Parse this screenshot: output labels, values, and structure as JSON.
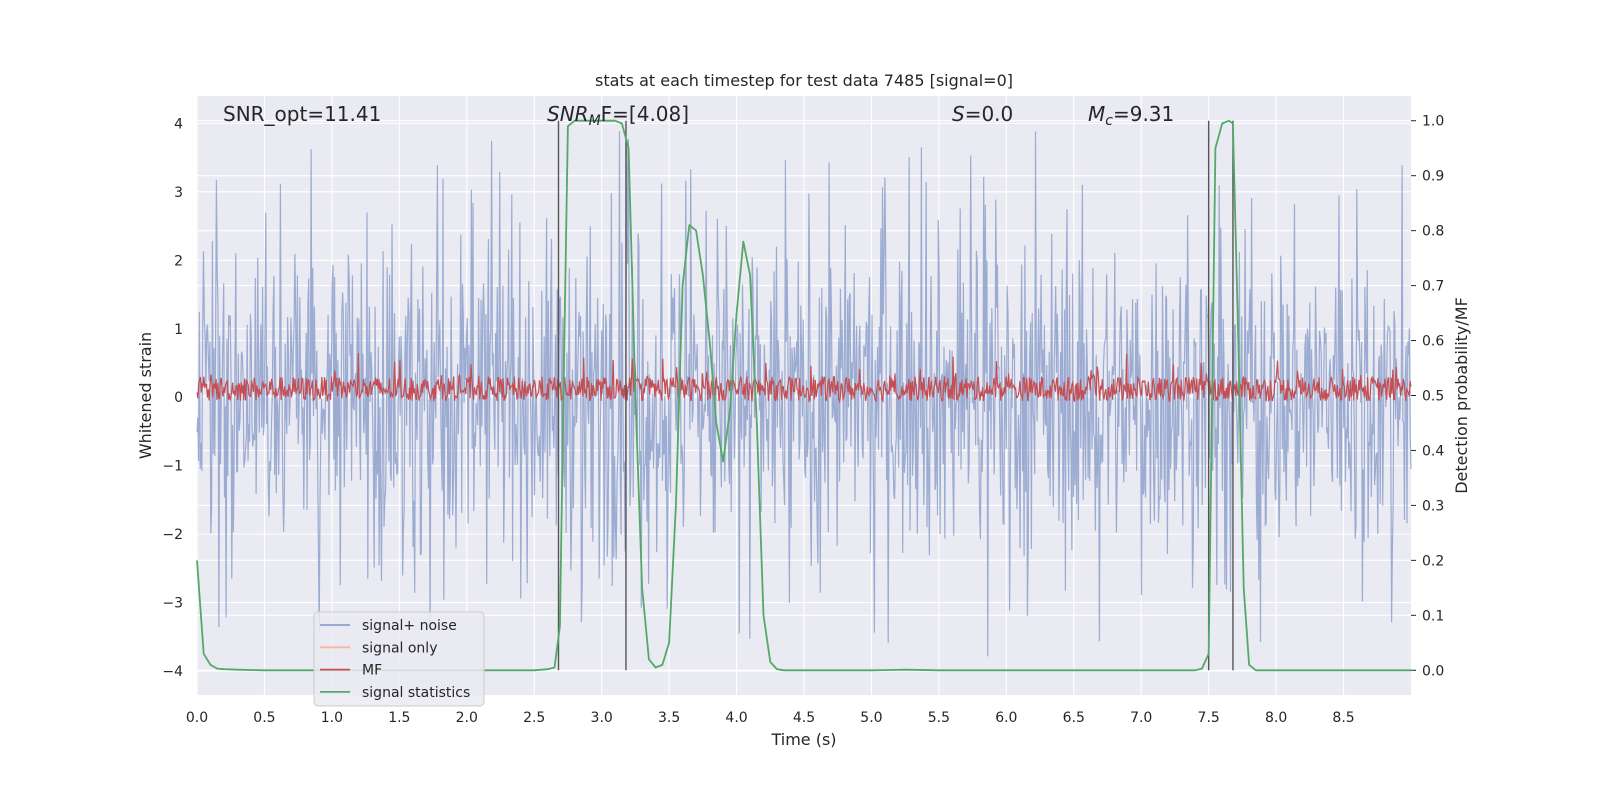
{
  "chart_data": {
    "type": "line",
    "title": "stats at each timestep for test data 7485 [signal=0]",
    "xlabel": "Time (s)",
    "ylabel": "Whitened strain",
    "ylabel_right": "Detection probability/MF",
    "xlim": [
      0.0,
      9.0
    ],
    "ylim": [
      -4.35,
      4.4
    ],
    "ylim_right": [
      -0.045,
      1.045
    ],
    "xticks": [
      "0.0",
      "0.5",
      "1.0",
      "1.5",
      "2.0",
      "2.5",
      "3.0",
      "3.5",
      "4.0",
      "4.5",
      "5.0",
      "5.5",
      "6.0",
      "6.5",
      "7.0",
      "7.5",
      "8.0",
      "8.5"
    ],
    "yticks": [
      "4",
      "3",
      "2",
      "1",
      "0",
      "−1",
      "−2",
      "−3",
      "−4"
    ],
    "yticks_right": [
      "1.0",
      "0.9",
      "0.8",
      "0.7",
      "0.6",
      "0.5",
      "0.4",
      "0.3",
      "0.2",
      "0.1",
      "0.0"
    ],
    "annotations": {
      "snr_opt": "SNR_opt=11.41",
      "snr_mf_sym": "SNR",
      "snr_mf_sub": "M",
      "snr_mf_rest": "F=[4.08]",
      "s_sym": "S",
      "s_rest": "=0.0",
      "mc_sym": "M",
      "mc_sub": "c",
      "mc_rest": "=9.31"
    },
    "legend": [
      {
        "label": "signal+ noise",
        "color": "#8da0cb"
      },
      {
        "label": "signal only",
        "color": "#ffb499"
      },
      {
        "label": "MF",
        "color": "#c44e52"
      },
      {
        "label": "signal statistics",
        "color": "#55a868"
      }
    ],
    "vlines_x": [
      2.68,
      3.18,
      7.5,
      7.68
    ],
    "series": [
      {
        "name": "signal statistics",
        "axis": "right",
        "x": [
          0.0,
          0.05,
          0.1,
          0.15,
          0.2,
          0.3,
          0.5,
          1.0,
          2.0,
          2.5,
          2.6,
          2.65,
          2.69,
          2.72,
          2.75,
          2.8,
          2.9,
          3.0,
          3.1,
          3.15,
          3.2,
          3.25,
          3.3,
          3.35,
          3.4,
          3.45,
          3.5,
          3.55,
          3.6,
          3.65,
          3.7,
          3.75,
          3.8,
          3.85,
          3.9,
          3.95,
          4.0,
          4.05,
          4.1,
          4.15,
          4.2,
          4.25,
          4.3,
          4.35,
          4.4,
          4.5,
          5.0,
          5.25,
          5.5,
          6.0,
          6.5,
          7.0,
          7.3,
          7.4,
          7.45,
          7.5,
          7.55,
          7.6,
          7.65,
          7.68,
          7.72,
          7.76,
          7.8,
          7.85,
          8.0,
          8.5,
          9.0
        ],
        "values": [
          0.2,
          0.03,
          0.01,
          0.003,
          0.002,
          0.001,
          0.0,
          0.0,
          0.0,
          0.0,
          0.002,
          0.005,
          0.08,
          0.55,
          0.99,
          1.0,
          1.0,
          1.0,
          1.0,
          0.995,
          0.95,
          0.5,
          0.15,
          0.02,
          0.005,
          0.01,
          0.05,
          0.3,
          0.7,
          0.81,
          0.8,
          0.72,
          0.6,
          0.45,
          0.38,
          0.47,
          0.65,
          0.78,
          0.72,
          0.45,
          0.1,
          0.015,
          0.002,
          0.0,
          0.0,
          0.0,
          0.0,
          0.001,
          0.0,
          0.0,
          0.0,
          0.0,
          0.0,
          0.0,
          0.003,
          0.03,
          0.95,
          0.995,
          1.0,
          0.995,
          0.6,
          0.15,
          0.01,
          0.0,
          0.0,
          0.0,
          0.0
        ]
      },
      {
        "name": "signal+ noise",
        "axis": "left",
        "note": "dense whitened noise, amplitude ~±2 with spikes to ~±4"
      },
      {
        "name": "MF",
        "axis": "right",
        "note": "dense band, approx 0.48–0.56"
      }
    ]
  }
}
